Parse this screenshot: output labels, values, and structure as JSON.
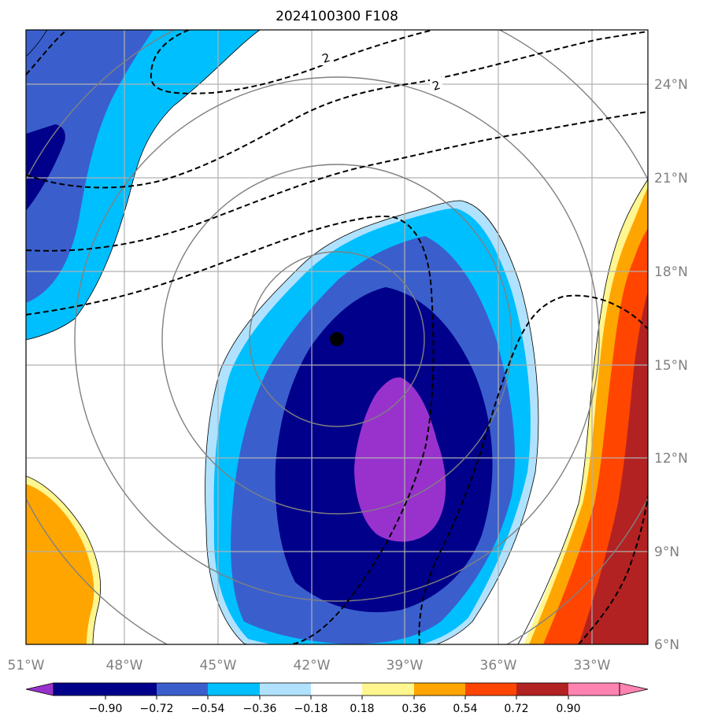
{
  "title": "2024100300 F108",
  "map": {
    "lon_range": [
      -51,
      -31
    ],
    "lat_range": [
      6,
      26
    ],
    "lon_ticks": [
      {
        "value": -51,
        "label": "51°W"
      },
      {
        "value": -48,
        "label": "48°W"
      },
      {
        "value": -45,
        "label": "45°W"
      },
      {
        "value": -42,
        "label": "42°W"
      },
      {
        "value": -39,
        "label": "39°W"
      },
      {
        "value": -36,
        "label": "36°W"
      },
      {
        "value": -33,
        "label": "33°W"
      }
    ],
    "lat_ticks": [
      {
        "value": 24,
        "label": "24°N"
      },
      {
        "value": 21,
        "label": "21°N"
      },
      {
        "value": 18,
        "label": "18°N"
      },
      {
        "value": 15,
        "label": "15°N"
      },
      {
        "value": 12,
        "label": "12°N"
      },
      {
        "value": 9,
        "label": "9°N"
      },
      {
        "value": 6,
        "label": "6°N"
      }
    ],
    "gridlines": true,
    "storm_center": {
      "lon": -41.2,
      "lat": 15.8
    },
    "range_rings_count": 4,
    "dashed_contour_labels": [
      "2",
      "2"
    ],
    "fill_color_land": "none"
  },
  "colorbar": {
    "colors": [
      "#9932cc",
      "#00008b",
      "#3a5fcd",
      "#00bfff",
      "#b0e2ff",
      "#ffffff",
      "#fff68f",
      "#ffa500",
      "#ff4500",
      "#b22222",
      "#ff83b0"
    ],
    "labels": [
      "−0.90",
      "−0.72",
      "−0.54",
      "−0.36",
      "−0.18",
      "0.18",
      "0.36",
      "0.54",
      "0.72",
      "0.90"
    ]
  }
}
